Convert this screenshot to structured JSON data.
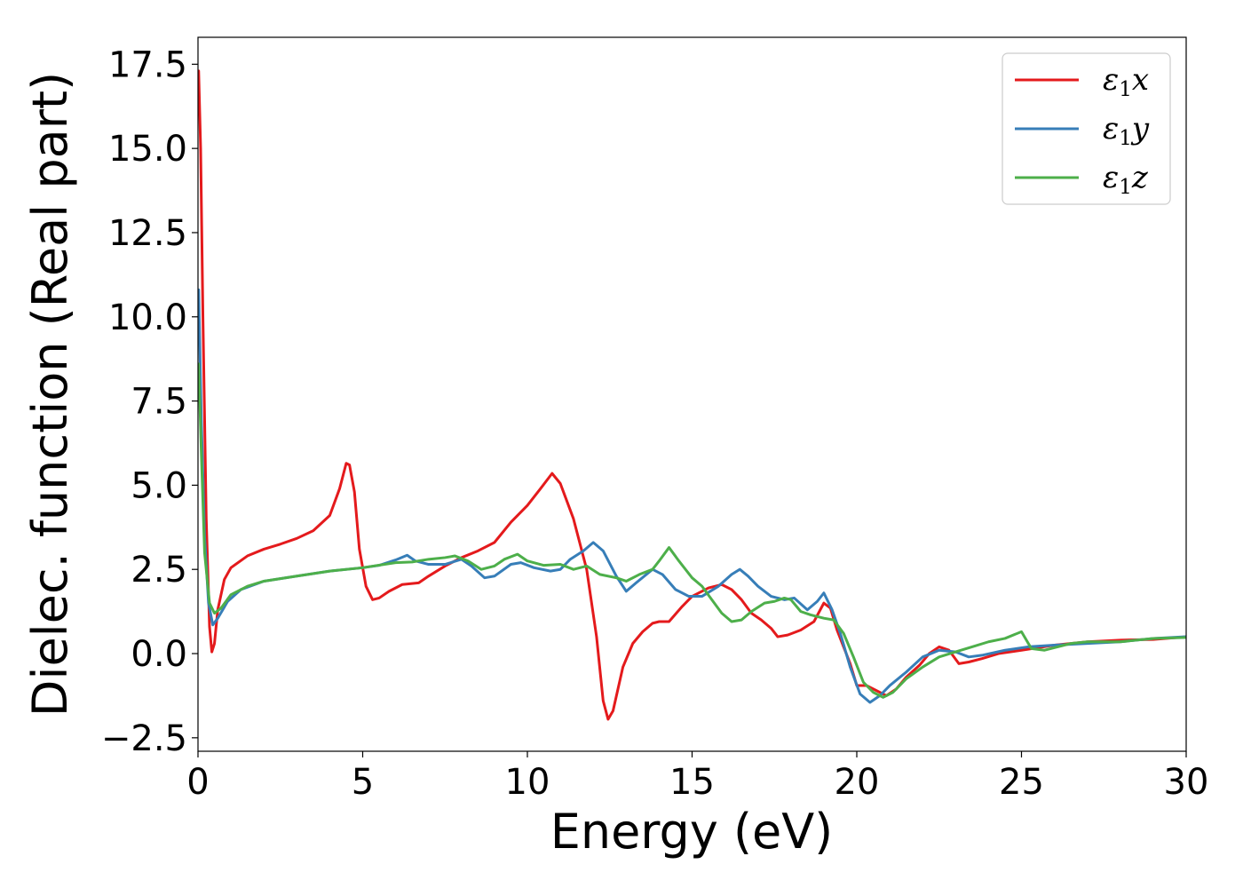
{
  "chart_data": {
    "type": "line",
    "xlabel": "Energy (eV)",
    "ylabel": "Dielec. function (Real part)",
    "xlim": [
      0,
      30
    ],
    "ylim": [
      -2.9,
      18.3
    ],
    "xticks": [
      0,
      5,
      10,
      15,
      20,
      25,
      30
    ],
    "yticks": [
      -2.5,
      0.0,
      2.5,
      5.0,
      7.5,
      10.0,
      12.5,
      15.0,
      17.5
    ],
    "xtick_labels": [
      "0",
      "5",
      "10",
      "15",
      "20",
      "25",
      "30"
    ],
    "ytick_labels": [
      "−2.5",
      "0.0",
      "2.5",
      "5.0",
      "7.5",
      "10.0",
      "12.5",
      "15.0",
      "17.5"
    ],
    "grid": false,
    "legend_position": "top-right",
    "series": [
      {
        "name": "ε₁x",
        "symbol": "ε",
        "subscript": "1",
        "suffix": "x",
        "color": "#e41a1c",
        "points": [
          [
            0.02,
            17.3
          ],
          [
            0.08,
            15.0
          ],
          [
            0.15,
            10.0
          ],
          [
            0.25,
            4.0
          ],
          [
            0.35,
            0.8
          ],
          [
            0.42,
            0.05
          ],
          [
            0.5,
            0.3
          ],
          [
            0.6,
            1.3
          ],
          [
            0.8,
            2.2
          ],
          [
            1.0,
            2.55
          ],
          [
            1.5,
            2.9
          ],
          [
            2.0,
            3.1
          ],
          [
            2.5,
            3.25
          ],
          [
            3.0,
            3.42
          ],
          [
            3.5,
            3.65
          ],
          [
            4.0,
            4.1
          ],
          [
            4.3,
            4.9
          ],
          [
            4.5,
            5.65
          ],
          [
            4.6,
            5.6
          ],
          [
            4.75,
            4.8
          ],
          [
            4.9,
            3.1
          ],
          [
            5.1,
            2.0
          ],
          [
            5.3,
            1.6
          ],
          [
            5.5,
            1.65
          ],
          [
            5.8,
            1.85
          ],
          [
            6.2,
            2.05
          ],
          [
            6.7,
            2.1
          ],
          [
            7.0,
            2.3
          ],
          [
            7.5,
            2.6
          ],
          [
            8.0,
            2.85
          ],
          [
            8.5,
            3.05
          ],
          [
            9.0,
            3.3
          ],
          [
            9.5,
            3.9
          ],
          [
            10.0,
            4.4
          ],
          [
            10.4,
            4.9
          ],
          [
            10.75,
            5.35
          ],
          [
            11.0,
            5.05
          ],
          [
            11.4,
            4.0
          ],
          [
            11.8,
            2.5
          ],
          [
            12.1,
            0.5
          ],
          [
            12.3,
            -1.4
          ],
          [
            12.45,
            -1.95
          ],
          [
            12.6,
            -1.7
          ],
          [
            12.9,
            -0.4
          ],
          [
            13.2,
            0.3
          ],
          [
            13.5,
            0.65
          ],
          [
            13.8,
            0.9
          ],
          [
            14.0,
            0.95
          ],
          [
            14.3,
            0.95
          ],
          [
            14.7,
            1.4
          ],
          [
            15.0,
            1.7
          ],
          [
            15.5,
            1.95
          ],
          [
            15.9,
            2.05
          ],
          [
            16.2,
            1.9
          ],
          [
            16.5,
            1.6
          ],
          [
            16.8,
            1.2
          ],
          [
            17.1,
            1.0
          ],
          [
            17.4,
            0.75
          ],
          [
            17.6,
            0.5
          ],
          [
            17.9,
            0.55
          ],
          [
            18.3,
            0.7
          ],
          [
            18.7,
            0.95
          ],
          [
            19.0,
            1.5
          ],
          [
            19.2,
            1.35
          ],
          [
            19.4,
            0.7
          ],
          [
            19.6,
            0.2
          ],
          [
            19.8,
            -0.3
          ],
          [
            20.0,
            -0.95
          ],
          [
            20.3,
            -0.95
          ],
          [
            20.6,
            -1.1
          ],
          [
            20.9,
            -1.25
          ],
          [
            21.2,
            -1.05
          ],
          [
            21.5,
            -0.7
          ],
          [
            21.9,
            -0.35
          ],
          [
            22.2,
            0.0
          ],
          [
            22.5,
            0.2
          ],
          [
            22.8,
            0.1
          ],
          [
            23.1,
            -0.3
          ],
          [
            23.4,
            -0.25
          ],
          [
            23.8,
            -0.15
          ],
          [
            24.3,
            0.0
          ],
          [
            25.0,
            0.1
          ],
          [
            26.0,
            0.25
          ],
          [
            27.0,
            0.35
          ],
          [
            28.0,
            0.4
          ],
          [
            29.0,
            0.42
          ],
          [
            30.0,
            0.5
          ]
        ]
      },
      {
        "name": "ε₁y",
        "symbol": "ε",
        "subscript": "1",
        "suffix": "y",
        "color": "#377eb8",
        "points": [
          [
            0.02,
            10.8
          ],
          [
            0.1,
            7.0
          ],
          [
            0.2,
            3.5
          ],
          [
            0.32,
            1.5
          ],
          [
            0.45,
            0.85
          ],
          [
            0.6,
            1.05
          ],
          [
            0.9,
            1.55
          ],
          [
            1.3,
            1.9
          ],
          [
            2.0,
            2.15
          ],
          [
            3.0,
            2.3
          ],
          [
            4.0,
            2.45
          ],
          [
            5.0,
            2.55
          ],
          [
            5.5,
            2.62
          ],
          [
            6.0,
            2.78
          ],
          [
            6.35,
            2.92
          ],
          [
            6.6,
            2.75
          ],
          [
            7.0,
            2.65
          ],
          [
            7.5,
            2.65
          ],
          [
            8.0,
            2.8
          ],
          [
            8.3,
            2.6
          ],
          [
            8.7,
            2.25
          ],
          [
            9.0,
            2.3
          ],
          [
            9.5,
            2.65
          ],
          [
            9.8,
            2.7
          ],
          [
            10.2,
            2.55
          ],
          [
            10.7,
            2.45
          ],
          [
            11.0,
            2.5
          ],
          [
            11.3,
            2.8
          ],
          [
            11.7,
            3.05
          ],
          [
            12.0,
            3.3
          ],
          [
            12.3,
            3.05
          ],
          [
            12.7,
            2.3
          ],
          [
            13.0,
            1.85
          ],
          [
            13.3,
            2.1
          ],
          [
            13.8,
            2.5
          ],
          [
            14.1,
            2.35
          ],
          [
            14.5,
            1.9
          ],
          [
            14.9,
            1.7
          ],
          [
            15.3,
            1.7
          ],
          [
            15.8,
            2.0
          ],
          [
            16.2,
            2.35
          ],
          [
            16.45,
            2.5
          ],
          [
            16.7,
            2.3
          ],
          [
            17.0,
            2.0
          ],
          [
            17.4,
            1.7
          ],
          [
            17.8,
            1.6
          ],
          [
            18.1,
            1.65
          ],
          [
            18.5,
            1.3
          ],
          [
            18.8,
            1.55
          ],
          [
            19.0,
            1.8
          ],
          [
            19.25,
            1.3
          ],
          [
            19.5,
            0.6
          ],
          [
            19.8,
            -0.4
          ],
          [
            20.1,
            -1.2
          ],
          [
            20.4,
            -1.45
          ],
          [
            20.7,
            -1.25
          ],
          [
            21.0,
            -0.95
          ],
          [
            21.5,
            -0.55
          ],
          [
            22.0,
            -0.1
          ],
          [
            22.5,
            0.1
          ],
          [
            23.0,
            0.05
          ],
          [
            23.4,
            -0.1
          ],
          [
            23.8,
            -0.05
          ],
          [
            24.5,
            0.1
          ],
          [
            25.2,
            0.2
          ],
          [
            26.0,
            0.25
          ],
          [
            27.0,
            0.3
          ],
          [
            28.0,
            0.35
          ],
          [
            29.0,
            0.45
          ],
          [
            30.0,
            0.5
          ]
        ]
      },
      {
        "name": "ε₁z",
        "symbol": "ε",
        "subscript": "1",
        "suffix": "z",
        "color": "#4daf4a",
        "points": [
          [
            0.02,
            8.6
          ],
          [
            0.1,
            6.0
          ],
          [
            0.2,
            3.0
          ],
          [
            0.35,
            1.5
          ],
          [
            0.5,
            1.2
          ],
          [
            0.7,
            1.35
          ],
          [
            1.0,
            1.75
          ],
          [
            1.5,
            2.0
          ],
          [
            2.0,
            2.15
          ],
          [
            3.0,
            2.3
          ],
          [
            4.0,
            2.45
          ],
          [
            5.0,
            2.55
          ],
          [
            6.0,
            2.7
          ],
          [
            6.5,
            2.72
          ],
          [
            7.0,
            2.8
          ],
          [
            7.5,
            2.85
          ],
          [
            7.8,
            2.9
          ],
          [
            8.2,
            2.75
          ],
          [
            8.6,
            2.5
          ],
          [
            9.0,
            2.6
          ],
          [
            9.3,
            2.8
          ],
          [
            9.7,
            2.95
          ],
          [
            10.0,
            2.75
          ],
          [
            10.5,
            2.62
          ],
          [
            11.0,
            2.65
          ],
          [
            11.4,
            2.5
          ],
          [
            11.8,
            2.6
          ],
          [
            12.2,
            2.35
          ],
          [
            12.7,
            2.25
          ],
          [
            13.0,
            2.15
          ],
          [
            13.4,
            2.35
          ],
          [
            13.8,
            2.5
          ],
          [
            14.0,
            2.75
          ],
          [
            14.3,
            3.15
          ],
          [
            14.6,
            2.75
          ],
          [
            15.0,
            2.25
          ],
          [
            15.3,
            2.0
          ],
          [
            15.6,
            1.6
          ],
          [
            15.9,
            1.2
          ],
          [
            16.2,
            0.95
          ],
          [
            16.5,
            1.0
          ],
          [
            16.8,
            1.25
          ],
          [
            17.2,
            1.5
          ],
          [
            17.5,
            1.55
          ],
          [
            17.8,
            1.65
          ],
          [
            18.0,
            1.6
          ],
          [
            18.3,
            1.25
          ],
          [
            18.6,
            1.15
          ],
          [
            19.0,
            1.05
          ],
          [
            19.3,
            1.0
          ],
          [
            19.6,
            0.6
          ],
          [
            19.9,
            -0.1
          ],
          [
            20.2,
            -0.85
          ],
          [
            20.5,
            -1.15
          ],
          [
            20.8,
            -1.3
          ],
          [
            21.1,
            -1.15
          ],
          [
            21.5,
            -0.75
          ],
          [
            22.0,
            -0.4
          ],
          [
            22.5,
            -0.1
          ],
          [
            23.0,
            0.05
          ],
          [
            23.5,
            0.2
          ],
          [
            24.0,
            0.35
          ],
          [
            24.5,
            0.45
          ],
          [
            25.0,
            0.65
          ],
          [
            25.3,
            0.15
          ],
          [
            25.7,
            0.1
          ],
          [
            26.5,
            0.3
          ],
          [
            27.0,
            0.35
          ],
          [
            28.0,
            0.35
          ],
          [
            29.0,
            0.45
          ],
          [
            30.0,
            0.48
          ]
        ]
      }
    ]
  }
}
